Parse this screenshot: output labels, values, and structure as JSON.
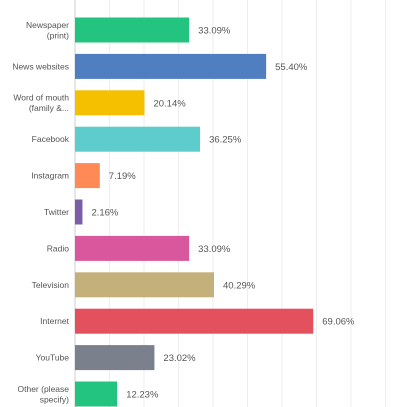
{
  "chart_data": {
    "type": "bar",
    "orientation": "horizontal",
    "title": "",
    "xlabel": "",
    "ylabel": "",
    "xlim": [
      0,
      100
    ],
    "value_format": "percent",
    "grid": true,
    "legend": "none",
    "categories": [
      [
        "Newspaper",
        "(print)"
      ],
      [
        "News websites"
      ],
      [
        "Word of mouth",
        "(family &..."
      ],
      [
        "Facebook"
      ],
      [
        "Instagram"
      ],
      [
        "Twitter"
      ],
      [
        "Radio"
      ],
      [
        "Television"
      ],
      [
        "Internet"
      ],
      [
        "YouTube"
      ],
      [
        "Other (please",
        "specify)"
      ]
    ],
    "values": [
      33.09,
      55.4,
      20.14,
      36.25,
      7.19,
      2.16,
      33.09,
      40.29,
      69.06,
      23.02,
      12.23
    ],
    "value_labels": [
      "33.09%",
      "55.40%",
      "20.14%",
      "36.25%",
      "7.19%",
      "2.16%",
      "33.09%",
      "40.29%",
      "69.06%",
      "23.02%",
      "12.23%"
    ],
    "colors": [
      "#22c47f",
      "#4f7ec1",
      "#f5c000",
      "#5ecbcd",
      "#ff8a55",
      "#7c5ea6",
      "#d9579c",
      "#c4b07a",
      "#e3515e",
      "#7a818c",
      "#22c47f"
    ]
  }
}
